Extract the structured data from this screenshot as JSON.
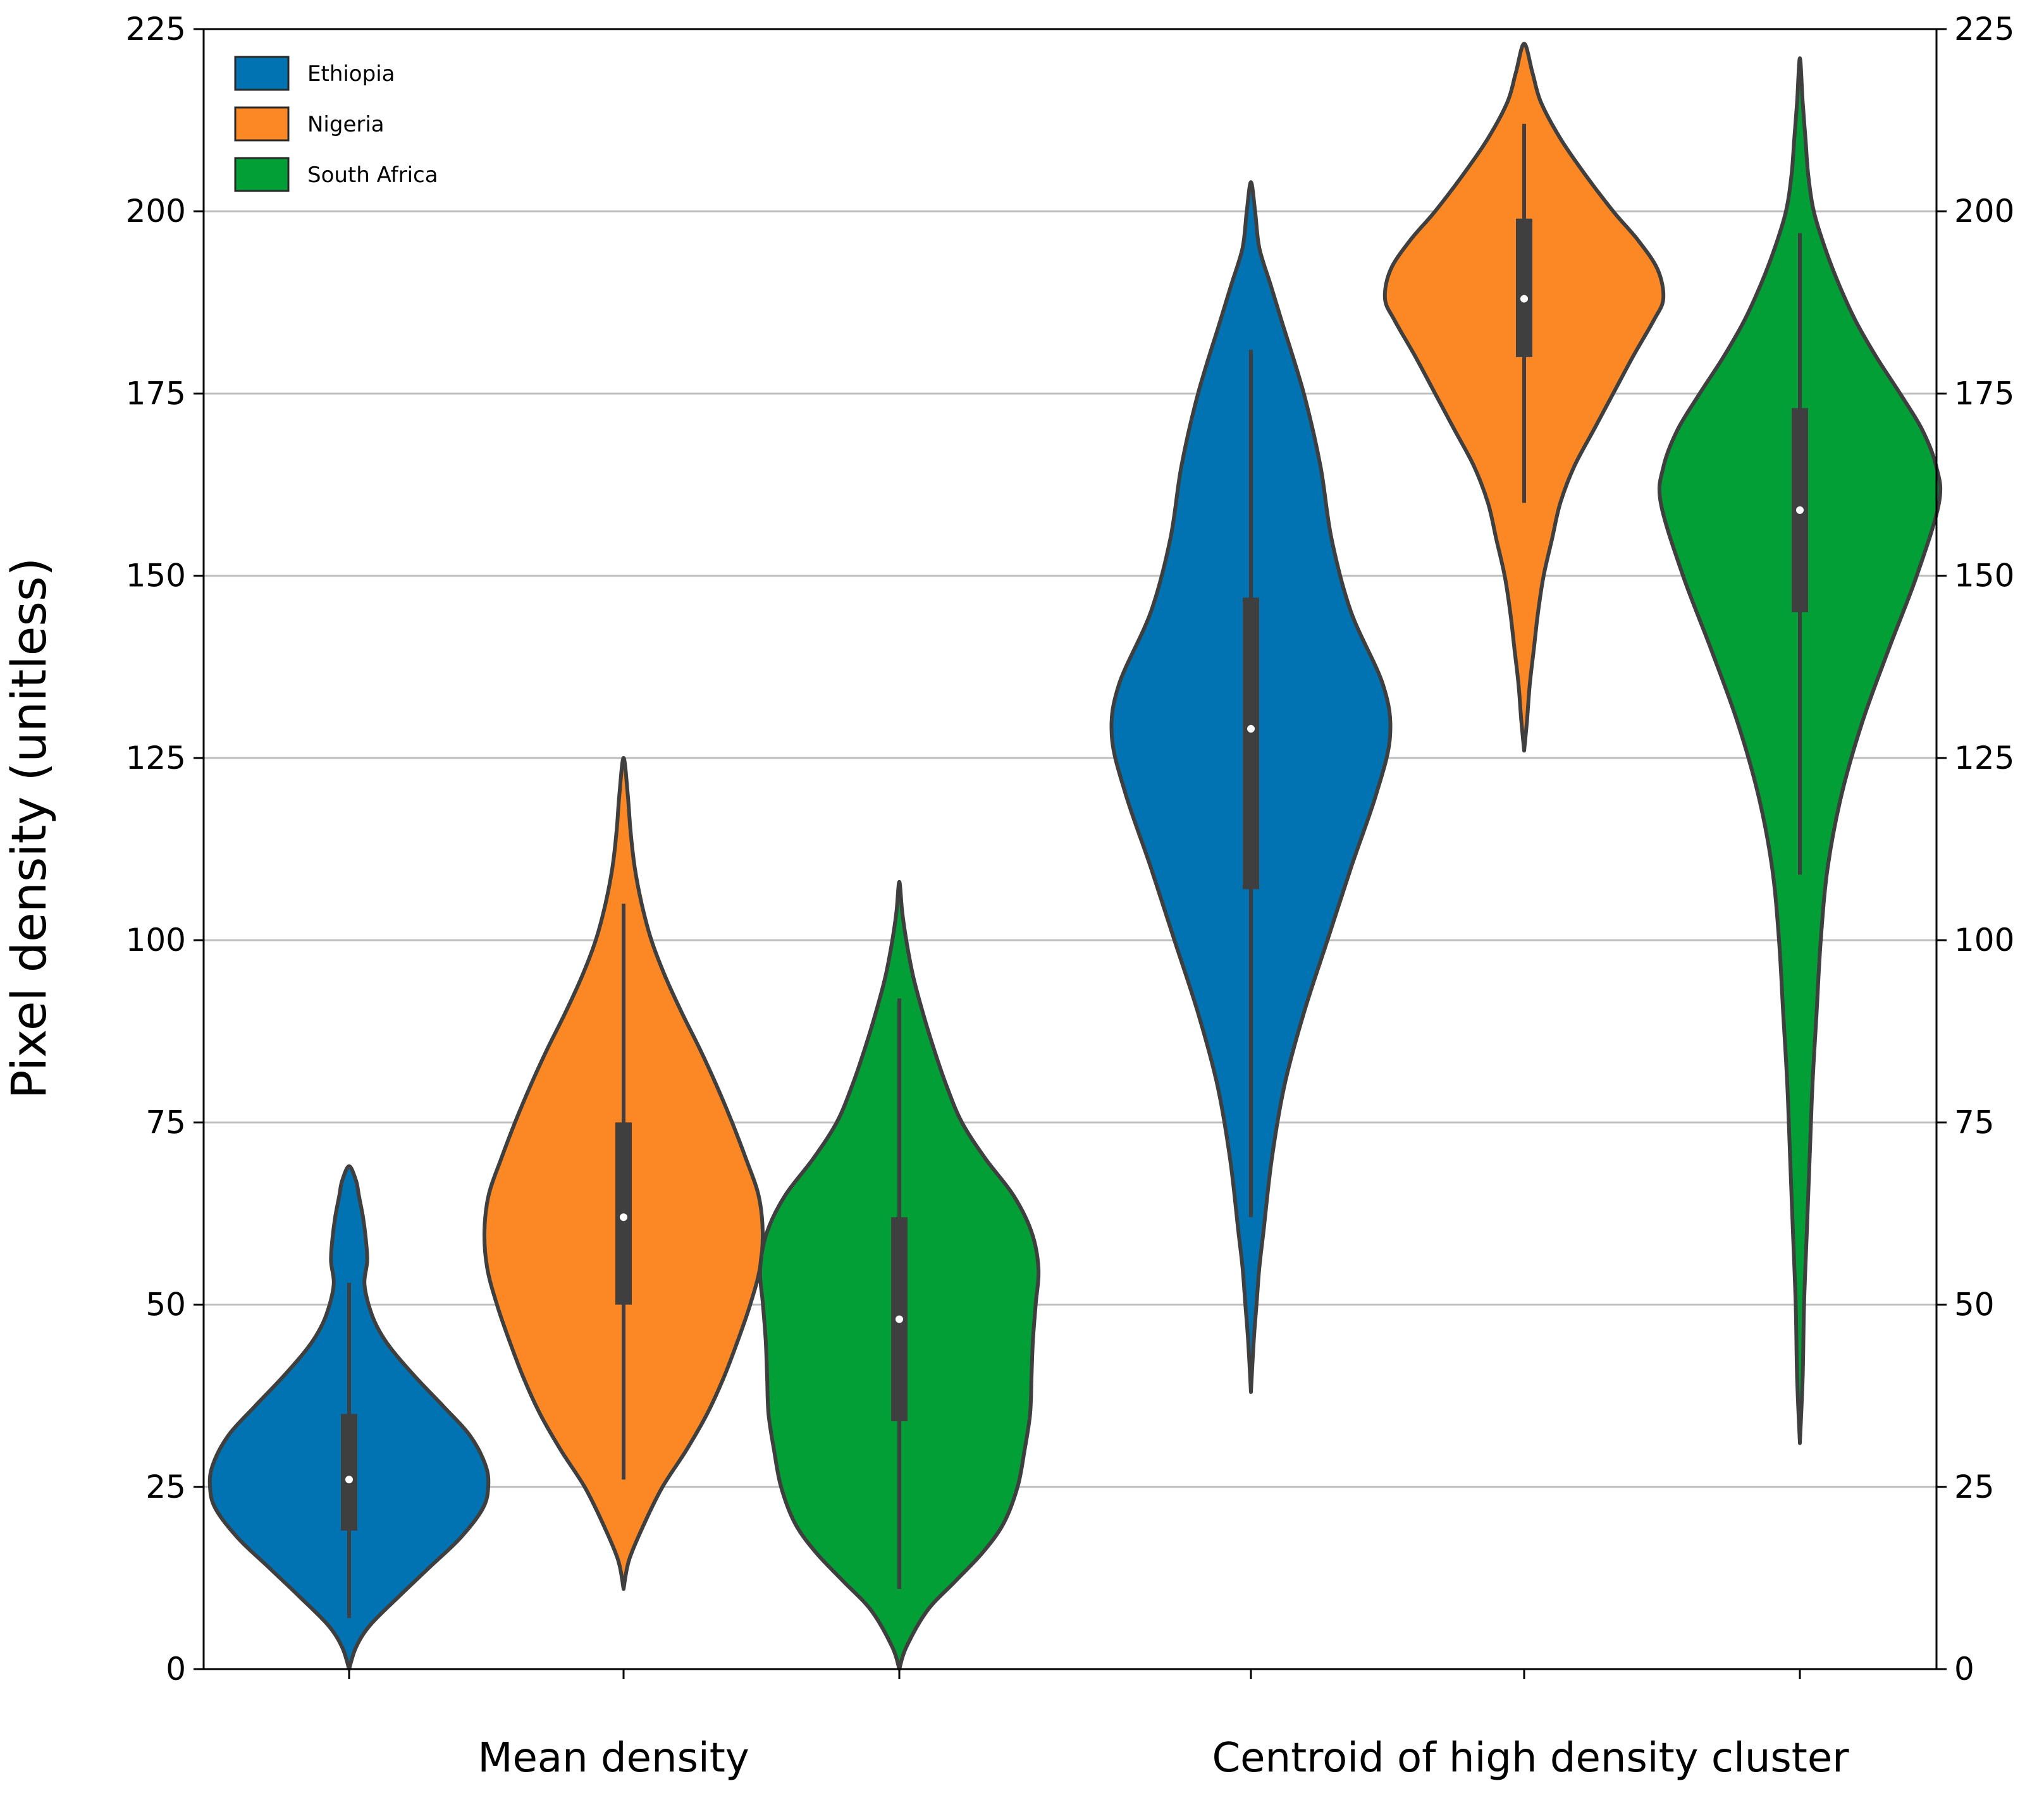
{
  "chart_data": {
    "type": "violin",
    "title": "",
    "xlabel": "",
    "ylabel": "Pixel density (unitless)",
    "ylim": [
      0,
      225
    ],
    "yticks": [
      0,
      25,
      50,
      75,
      100,
      125,
      150,
      175,
      200,
      225
    ],
    "ytick_labels": [
      "0",
      "25",
      "50",
      "75",
      "100",
      "125",
      "150",
      "175",
      "200",
      "225"
    ],
    "grid": true,
    "legend_position": "top-left",
    "colors": {
      "Ethiopia": "#0173b2",
      "Nigeria": "#fb8824",
      "South Africa": "#029e36"
    },
    "groups": [
      "Mean density",
      "Centroid of high density cluster"
    ],
    "series": [
      {
        "name": "Ethiopia",
        "violins": [
          {
            "group": "Mean density",
            "min": 0,
            "max": 69,
            "median": 26,
            "q1": 19,
            "q3": 35,
            "whisker_low": 7,
            "whisker_high": 53,
            "density": [
              [
                0,
                0
              ],
              [
                3,
                0.05
              ],
              [
                6,
                0.15
              ],
              [
                10,
                0.36
              ],
              [
                14,
                0.58
              ],
              [
                18,
                0.8
              ],
              [
                22,
                0.96
              ],
              [
                25,
                1.0
              ],
              [
                28,
                0.98
              ],
              [
                32,
                0.87
              ],
              [
                36,
                0.68
              ],
              [
                40,
                0.48
              ],
              [
                44,
                0.3
              ],
              [
                47,
                0.2
              ],
              [
                50,
                0.14
              ],
              [
                53,
                0.11
              ],
              [
                56,
                0.13
              ],
              [
                59,
                0.12
              ],
              [
                62,
                0.1
              ],
              [
                65,
                0.07
              ],
              [
                67,
                0.05
              ],
              [
                69,
                0.0
              ]
            ]
          },
          {
            "group": "Centroid of high density cluster",
            "min": 38,
            "max": 204,
            "median": 129,
            "q1": 107,
            "q3": 147,
            "whisker_low": 62,
            "whisker_high": 181,
            "density": [
              [
                38,
                0
              ],
              [
                45,
                0.02
              ],
              [
                50,
                0.04
              ],
              [
                55,
                0.06
              ],
              [
                60,
                0.09
              ],
              [
                70,
                0.15
              ],
              [
                80,
                0.24
              ],
              [
                90,
                0.38
              ],
              [
                100,
                0.55
              ],
              [
                110,
                0.72
              ],
              [
                120,
                0.9
              ],
              [
                128,
                1.0
              ],
              [
                135,
                0.95
              ],
              [
                145,
                0.72
              ],
              [
                155,
                0.58
              ],
              [
                165,
                0.5
              ],
              [
                175,
                0.38
              ],
              [
                185,
                0.22
              ],
              [
                190,
                0.14
              ],
              [
                195,
                0.06
              ],
              [
                200,
                0.03
              ],
              [
                204,
                0.0
              ]
            ]
          }
        ]
      },
      {
        "name": "Nigeria",
        "violins": [
          {
            "group": "Mean density",
            "min": 11,
            "max": 125,
            "median": 62,
            "q1": 50,
            "q3": 75,
            "whisker_low": 26,
            "whisker_high": 105,
            "density": [
              [
                11,
                0
              ],
              [
                15,
                0.04
              ],
              [
                20,
                0.15
              ],
              [
                25,
                0.28
              ],
              [
                30,
                0.45
              ],
              [
                35,
                0.6
              ],
              [
                40,
                0.72
              ],
              [
                45,
                0.82
              ],
              [
                50,
                0.91
              ],
              [
                55,
                0.98
              ],
              [
                60,
                1.0
              ],
              [
                65,
                0.97
              ],
              [
                70,
                0.88
              ],
              [
                75,
                0.78
              ],
              [
                80,
                0.67
              ],
              [
                85,
                0.55
              ],
              [
                90,
                0.42
              ],
              [
                95,
                0.3
              ],
              [
                100,
                0.2
              ],
              [
                105,
                0.13
              ],
              [
                110,
                0.08
              ],
              [
                115,
                0.05
              ],
              [
                120,
                0.03
              ],
              [
                125,
                0.0
              ]
            ]
          },
          {
            "group": "Centroid of high density cluster",
            "min": 126,
            "max": 223,
            "median": 188,
            "q1": 180,
            "q3": 199,
            "whisker_low": 160,
            "whisker_high": 212,
            "density": [
              [
                126,
                0
              ],
              [
                130,
                0.02
              ],
              [
                135,
                0.04
              ],
              [
                140,
                0.07
              ],
              [
                145,
                0.1
              ],
              [
                150,
                0.14
              ],
              [
                155,
                0.2
              ],
              [
                160,
                0.26
              ],
              [
                165,
                0.36
              ],
              [
                170,
                0.5
              ],
              [
                175,
                0.64
              ],
              [
                180,
                0.78
              ],
              [
                185,
                0.93
              ],
              [
                188,
                1.0
              ],
              [
                192,
                0.96
              ],
              [
                196,
                0.82
              ],
              [
                200,
                0.64
              ],
              [
                205,
                0.44
              ],
              [
                210,
                0.26
              ],
              [
                215,
                0.12
              ],
              [
                219,
                0.06
              ],
              [
                223,
                0.0
              ]
            ]
          }
        ]
      },
      {
        "name": "South Africa",
        "violins": [
          {
            "group": "Mean density",
            "min": 0,
            "max": 108,
            "median": 48,
            "q1": 34,
            "q3": 62,
            "whisker_low": 11,
            "whisker_high": 92,
            "density": [
              [
                0,
                0
              ],
              [
                3,
                0.05
              ],
              [
                8,
                0.2
              ],
              [
                12,
                0.4
              ],
              [
                16,
                0.6
              ],
              [
                20,
                0.75
              ],
              [
                25,
                0.85
              ],
              [
                30,
                0.9
              ],
              [
                35,
                0.94
              ],
              [
                40,
                0.95
              ],
              [
                45,
                0.96
              ],
              [
                50,
                0.98
              ],
              [
                55,
                1.0
              ],
              [
                60,
                0.95
              ],
              [
                65,
                0.82
              ],
              [
                70,
                0.62
              ],
              [
                75,
                0.45
              ],
              [
                80,
                0.34
              ],
              [
                85,
                0.25
              ],
              [
                90,
                0.17
              ],
              [
                95,
                0.1
              ],
              [
                100,
                0.05
              ],
              [
                104,
                0.02
              ],
              [
                108,
                0.0
              ]
            ]
          },
          {
            "group": "Centroid of high density cluster",
            "min": 31,
            "max": 221,
            "median": 159,
            "q1": 145,
            "q3": 173,
            "whisker_low": 109,
            "whisker_high": 197,
            "density": [
              [
                31,
                0
              ],
              [
                40,
                0.02
              ],
              [
                50,
                0.03
              ],
              [
                60,
                0.05
              ],
              [
                70,
                0.07
              ],
              [
                80,
                0.09
              ],
              [
                90,
                0.12
              ],
              [
                100,
                0.15
              ],
              [
                110,
                0.2
              ],
              [
                120,
                0.3
              ],
              [
                130,
                0.45
              ],
              [
                140,
                0.64
              ],
              [
                150,
                0.84
              ],
              [
                160,
                1.0
              ],
              [
                165,
                0.98
              ],
              [
                170,
                0.88
              ],
              [
                175,
                0.72
              ],
              [
                180,
                0.55
              ],
              [
                185,
                0.4
              ],
              [
                190,
                0.28
              ],
              [
                195,
                0.18
              ],
              [
                200,
                0.1
              ],
              [
                205,
                0.06
              ],
              [
                210,
                0.04
              ],
              [
                215,
                0.02
              ],
              [
                221,
                0.0
              ]
            ]
          }
        ]
      }
    ]
  }
}
